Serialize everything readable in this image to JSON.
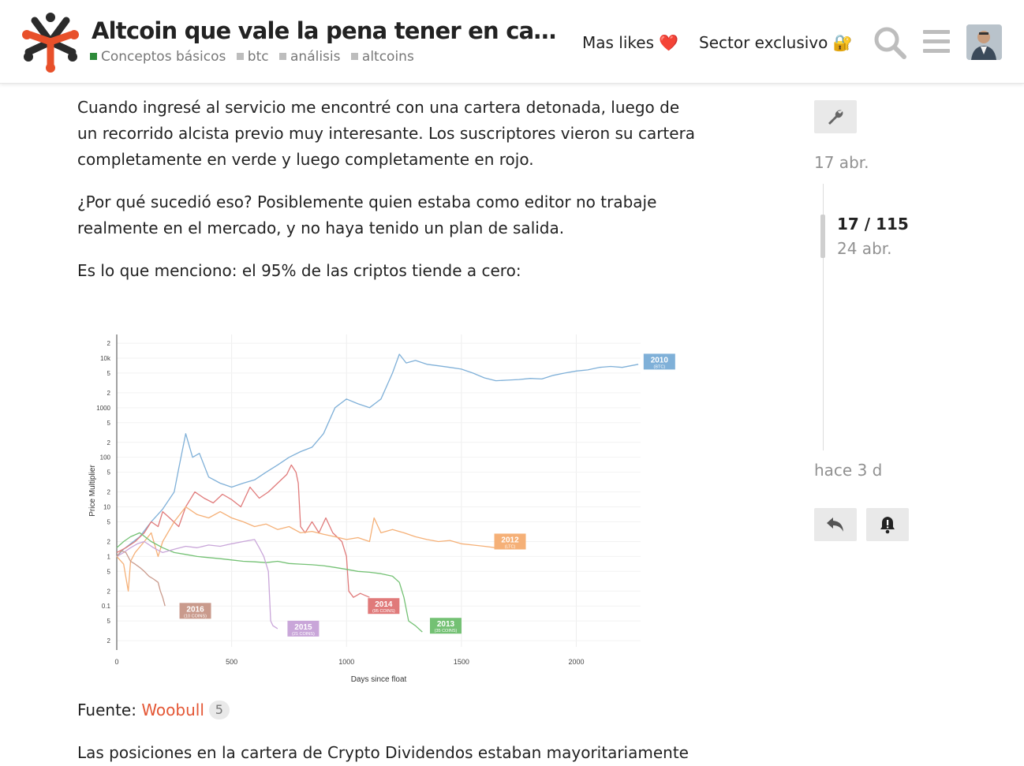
{
  "header": {
    "title": "Altcoin que vale la pena tener en cart...",
    "tags": [
      {
        "label": "Conceptos básicos",
        "color": "#2e8b3a"
      },
      {
        "label": "btc",
        "color": "#bdbdbd"
      },
      {
        "label": "análisis",
        "color": "#bdbdbd"
      },
      {
        "label": "altcoins",
        "color": "#bdbdbd"
      }
    ],
    "nav": {
      "likes_label": "Mas likes",
      "likes_emoji": "❤️",
      "exclusive_label": "Sector exclusivo",
      "exclusive_emoji": "🔐"
    },
    "icons": [
      "search-icon",
      "hamburger-menu-icon",
      "avatar"
    ]
  },
  "post": {
    "paragraphs": [
      "Cuando ingresé al servicio me encontré con una cartera detonada, luego de un recorrido alcista previo muy interesante. Los suscriptores vieron su cartera completamente en verde y luego completamente en rojo.",
      "¿Por qué sucedió eso? Posiblemente quien estaba como editor no trabaje realmente en el mercado, y no haya tenido un plan de salida.",
      "Es lo que menciono: el 95% de las criptos tiende a cero:"
    ],
    "source_prefix": "Fuente:",
    "source_link": "Woobull",
    "source_clicks": "5",
    "last_line": "Las posiciones en la cartera de Crypto Dividendos estaban mayoritariamente"
  },
  "timeline": {
    "start_date": "17 abr.",
    "position": "17 / 115",
    "position_date": "24 abr.",
    "end_date": "hace 3 d"
  },
  "chart_data": {
    "type": "line",
    "title": "",
    "xlabel": "Days since float",
    "ylabel": "Price Multiplier",
    "x_scale": "linear",
    "y_scale": "log",
    "xlim": [
      0,
      2280
    ],
    "ylim": [
      0.015,
      30000
    ],
    "x_ticks": [
      0,
      500,
      1000,
      1500,
      2000
    ],
    "y_ticks": [
      {
        "v": 20000,
        "l": "2"
      },
      {
        "v": 10000,
        "l": "10k"
      },
      {
        "v": 5000,
        "l": "5"
      },
      {
        "v": 2000,
        "l": "2"
      },
      {
        "v": 1000,
        "l": "1000"
      },
      {
        "v": 500,
        "l": "5"
      },
      {
        "v": 200,
        "l": "2"
      },
      {
        "v": 100,
        "l": "100"
      },
      {
        "v": 50,
        "l": "5"
      },
      {
        "v": 20,
        "l": "2"
      },
      {
        "v": 10,
        "l": "10"
      },
      {
        "v": 5,
        "l": "5"
      },
      {
        "v": 2,
        "l": "2"
      },
      {
        "v": 1,
        "l": "1"
      },
      {
        "v": 0.5,
        "l": "5"
      },
      {
        "v": 0.2,
        "l": "2"
      },
      {
        "v": 0.1,
        "l": "0.1"
      },
      {
        "v": 0.05,
        "l": "5"
      },
      {
        "v": 0.02,
        "l": "2"
      }
    ],
    "grid": true,
    "series": [
      {
        "name": "2010",
        "sublabel": "(BTC)",
        "color": "#7fb0d8",
        "label_at": [
          2300,
          8500
        ],
        "points": [
          [
            0,
            1
          ],
          [
            30,
            1.4
          ],
          [
            60,
            1.8
          ],
          [
            100,
            2.5
          ],
          [
            150,
            5
          ],
          [
            200,
            9
          ],
          [
            250,
            20
          ],
          [
            270,
            60
          ],
          [
            300,
            300
          ],
          [
            330,
            100
          ],
          [
            360,
            120
          ],
          [
            400,
            40
          ],
          [
            450,
            30
          ],
          [
            500,
            25
          ],
          [
            550,
            30
          ],
          [
            600,
            35
          ],
          [
            650,
            50
          ],
          [
            700,
            70
          ],
          [
            750,
            100
          ],
          [
            800,
            130
          ],
          [
            850,
            160
          ],
          [
            900,
            300
          ],
          [
            950,
            1000
          ],
          [
            1000,
            1500
          ],
          [
            1050,
            1200
          ],
          [
            1100,
            1000
          ],
          [
            1150,
            1500
          ],
          [
            1200,
            5000
          ],
          [
            1230,
            12000
          ],
          [
            1260,
            8000
          ],
          [
            1300,
            9000
          ],
          [
            1350,
            7500
          ],
          [
            1400,
            7000
          ],
          [
            1450,
            6500
          ],
          [
            1500,
            6000
          ],
          [
            1550,
            5000
          ],
          [
            1600,
            4000
          ],
          [
            1650,
            3500
          ],
          [
            1700,
            3600
          ],
          [
            1750,
            3700
          ],
          [
            1800,
            3900
          ],
          [
            1850,
            3800
          ],
          [
            1900,
            4500
          ],
          [
            1950,
            5000
          ],
          [
            2000,
            5500
          ],
          [
            2050,
            5800
          ],
          [
            2100,
            6500
          ],
          [
            2150,
            6800
          ],
          [
            2200,
            6500
          ],
          [
            2270,
            7500
          ]
        ]
      },
      {
        "name": "2014",
        "sublabel": "(95 COINS)",
        "color": "#e07a7a",
        "label_at": [
          1100,
          0.1
        ],
        "points": [
          [
            0,
            1.2
          ],
          [
            40,
            1.5
          ],
          [
            80,
            2
          ],
          [
            120,
            3
          ],
          [
            150,
            5
          ],
          [
            180,
            4
          ],
          [
            200,
            8
          ],
          [
            230,
            6
          ],
          [
            270,
            4
          ],
          [
            300,
            10
          ],
          [
            340,
            20
          ],
          [
            380,
            15
          ],
          [
            420,
            12
          ],
          [
            460,
            18
          ],
          [
            500,
            14
          ],
          [
            540,
            10
          ],
          [
            580,
            25
          ],
          [
            620,
            15
          ],
          [
            660,
            20
          ],
          [
            700,
            30
          ],
          [
            740,
            45
          ],
          [
            760,
            70
          ],
          [
            780,
            50
          ],
          [
            790,
            30
          ],
          [
            800,
            4
          ],
          [
            820,
            3
          ],
          [
            850,
            5
          ],
          [
            880,
            3
          ],
          [
            910,
            6
          ],
          [
            940,
            3
          ],
          [
            980,
            2
          ],
          [
            1000,
            1
          ],
          [
            1010,
            0.2
          ],
          [
            1030,
            0.15
          ],
          [
            1060,
            0.18
          ],
          [
            1100,
            0.15
          ]
        ]
      },
      {
        "name": "2012",
        "sublabel": "(LTC)",
        "color": "#f5b077",
        "label_at": [
          1650,
          2
        ],
        "points": [
          [
            0,
            1
          ],
          [
            30,
            0.7
          ],
          [
            50,
            0.2
          ],
          [
            60,
            0.8
          ],
          [
            80,
            1.2
          ],
          [
            120,
            2
          ],
          [
            150,
            3
          ],
          [
            180,
            1
          ],
          [
            200,
            2
          ],
          [
            250,
            5
          ],
          [
            300,
            10
          ],
          [
            350,
            7
          ],
          [
            400,
            6
          ],
          [
            450,
            8
          ],
          [
            500,
            6
          ],
          [
            550,
            5
          ],
          [
            600,
            4
          ],
          [
            650,
            4.5
          ],
          [
            700,
            3.5
          ],
          [
            750,
            4
          ],
          [
            800,
            3
          ],
          [
            850,
            3.2
          ],
          [
            900,
            2.8
          ],
          [
            950,
            2.5
          ],
          [
            1000,
            2.2
          ],
          [
            1050,
            2.4
          ],
          [
            1100,
            2
          ],
          [
            1120,
            6
          ],
          [
            1150,
            3
          ],
          [
            1200,
            3.5
          ],
          [
            1250,
            3
          ],
          [
            1300,
            2.5
          ],
          [
            1350,
            2.2
          ],
          [
            1400,
            2
          ],
          [
            1450,
            2.1
          ],
          [
            1500,
            1.8
          ],
          [
            1550,
            1.7
          ],
          [
            1600,
            1.6
          ],
          [
            1650,
            1.5
          ]
        ]
      },
      {
        "name": "2013",
        "sublabel": "(35 COINS)",
        "color": "#74c174",
        "label_at": [
          1370,
          0.04
        ],
        "points": [
          [
            0,
            1.5
          ],
          [
            30,
            2
          ],
          [
            60,
            2.5
          ],
          [
            100,
            3
          ],
          [
            150,
            2
          ],
          [
            200,
            1.5
          ],
          [
            250,
            1.2
          ],
          [
            300,
            1.1
          ],
          [
            350,
            1.0
          ],
          [
            400,
            0.95
          ],
          [
            450,
            0.9
          ],
          [
            500,
            0.85
          ],
          [
            550,
            0.8
          ],
          [
            600,
            0.78
          ],
          [
            650,
            0.75
          ],
          [
            700,
            0.8
          ],
          [
            750,
            0.72
          ],
          [
            800,
            0.7
          ],
          [
            850,
            0.68
          ],
          [
            900,
            0.65
          ],
          [
            950,
            0.6
          ],
          [
            1000,
            0.55
          ],
          [
            1050,
            0.5
          ],
          [
            1100,
            0.48
          ],
          [
            1150,
            0.45
          ],
          [
            1200,
            0.4
          ],
          [
            1230,
            0.3
          ],
          [
            1250,
            0.15
          ],
          [
            1270,
            0.05
          ],
          [
            1300,
            0.04
          ],
          [
            1330,
            0.03
          ]
        ]
      },
      {
        "name": "2015",
        "sublabel": "(21 COINS)",
        "color": "#c9a6d9",
        "label_at": [
          750,
          0.035
        ],
        "points": [
          [
            0,
            1
          ],
          [
            30,
            1.2
          ],
          [
            60,
            1.5
          ],
          [
            90,
            1.8
          ],
          [
            120,
            2
          ],
          [
            160,
            1.5
          ],
          [
            200,
            1.2
          ],
          [
            250,
            1.4
          ],
          [
            300,
            1.6
          ],
          [
            350,
            1.5
          ],
          [
            400,
            1.7
          ],
          [
            450,
            1.6
          ],
          [
            500,
            1.8
          ],
          [
            550,
            2
          ],
          [
            600,
            2.2
          ],
          [
            620,
            1.5
          ],
          [
            640,
            1
          ],
          [
            660,
            0.5
          ],
          [
            670,
            0.05
          ],
          [
            680,
            0.04
          ],
          [
            700,
            0.035
          ]
        ]
      },
      {
        "name": "2016",
        "sublabel": "(10 COINS)",
        "color": "#c99a8c",
        "label_at": [
          280,
          0.08
        ],
        "points": [
          [
            0,
            1
          ],
          [
            20,
            1.3
          ],
          [
            40,
            1.2
          ],
          [
            60,
            0.8
          ],
          [
            80,
            0.7
          ],
          [
            100,
            0.6
          ],
          [
            120,
            0.5
          ],
          [
            140,
            0.4
          ],
          [
            160,
            0.35
          ],
          [
            180,
            0.3
          ],
          [
            190,
            0.2
          ],
          [
            200,
            0.15
          ],
          [
            210,
            0.1
          ]
        ]
      }
    ]
  }
}
